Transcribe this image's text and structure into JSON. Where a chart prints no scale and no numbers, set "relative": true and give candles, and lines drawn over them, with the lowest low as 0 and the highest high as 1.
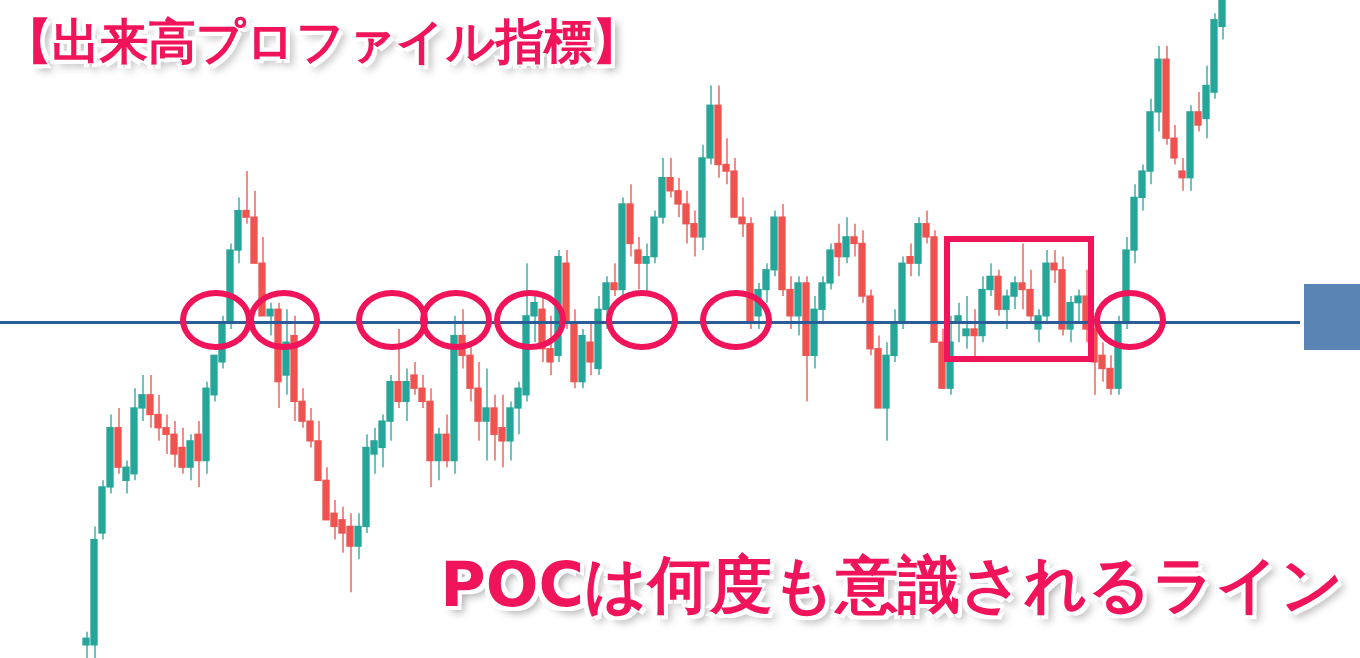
{
  "chart_data": {
    "type": "candlestick",
    "title": "【出来高プロファイル指標】",
    "relative": true,
    "annotations": [
      "POCは何度も意識されるライン"
    ],
    "ref_lines": [
      {
        "axis": "y",
        "value": 0.51,
        "color": "#2a5d98"
      }
    ],
    "categories": [
      null,
      null,
      null,
      null,
      null,
      null,
      null,
      null,
      null,
      null,
      null,
      null,
      null,
      null,
      null,
      null,
      null,
      null,
      null,
      null,
      null,
      null,
      null,
      null,
      null,
      null,
      null,
      null,
      null,
      null,
      null,
      null,
      null,
      null,
      null,
      null,
      null,
      null,
      null,
      null,
      null,
      null,
      null,
      null,
      null,
      null,
      null,
      null,
      null,
      null,
      null,
      null,
      null,
      null,
      null,
      null,
      null,
      null,
      null,
      null,
      null,
      null,
      null,
      null,
      null,
      null,
      null,
      null,
      null,
      null,
      null,
      null,
      null,
      null,
      null,
      null,
      null,
      null,
      null,
      null,
      null,
      null,
      null,
      null,
      null,
      null,
      null,
      null,
      null,
      null,
      null,
      null,
      null,
      null,
      null,
      null,
      null,
      null,
      null,
      null,
      null,
      null,
      null,
      null,
      null,
      null,
      null,
      null,
      null,
      null,
      null,
      null,
      null,
      null,
      null,
      null,
      null,
      null,
      null,
      null,
      null,
      null,
      null,
      null,
      null,
      null,
      null,
      null,
      null,
      null,
      null,
      null,
      null,
      null,
      null,
      null,
      null,
      null,
      null,
      null,
      null,
      null,
      null
    ],
    "ohlc": [
      [
        0.02,
        0.04,
        0,
        0.03
      ],
      [
        0.02,
        0.2,
        0,
        0.18
      ],
      [
        0.19,
        0.27,
        0.18,
        0.26
      ],
      [
        0.26,
        0.37,
        0.25,
        0.35
      ],
      [
        0.35,
        0.38,
        0.28,
        0.29
      ],
      [
        0.27,
        0.3,
        0.25,
        0.29
      ],
      [
        0.28,
        0.41,
        0.27,
        0.38
      ],
      [
        0.38,
        0.43,
        0.36,
        0.4
      ],
      [
        0.4,
        0.43,
        0.35,
        0.37
      ],
      [
        0.37,
        0.4,
        0.33,
        0.35
      ],
      [
        0.35,
        0.37,
        0.31,
        0.34
      ],
      [
        0.34,
        0.36,
        0.29,
        0.31
      ],
      [
        0.32,
        0.35,
        0.28,
        0.29
      ],
      [
        0.29,
        0.34,
        0.27,
        0.33
      ],
      [
        0.34,
        0.36,
        0.26,
        0.3
      ],
      [
        0.3,
        0.42,
        0.28,
        0.41
      ],
      [
        0.4,
        0.46,
        0.39,
        0.46
      ],
      [
        0.45,
        0.52,
        0.44,
        0.51
      ],
      [
        0.51,
        0.63,
        0.5,
        0.62
      ],
      [
        0.62,
        0.7,
        0.6,
        0.68
      ],
      [
        0.68,
        0.74,
        0.66,
        0.67
      ],
      [
        0.67,
        0.71,
        0.6,
        0.6
      ],
      [
        0.6,
        0.64,
        0.52,
        0.52
      ],
      [
        0.52,
        0.54,
        0.49,
        0.53
      ],
      [
        0.53,
        0.54,
        0.38,
        0.42
      ],
      [
        0.43,
        0.53,
        0.4,
        0.48
      ],
      [
        0.49,
        0.52,
        0.36,
        0.39
      ],
      [
        0.39,
        0.41,
        0.35,
        0.36
      ],
      [
        0.36,
        0.38,
        0.32,
        0.33
      ],
      [
        0.33,
        0.36,
        0.27,
        0.27
      ],
      [
        0.27,
        0.29,
        0.21,
        0.21
      ],
      [
        0.22,
        0.24,
        0.18,
        0.2
      ],
      [
        0.21,
        0.23,
        0.16,
        0.19
      ],
      [
        0.2,
        0.22,
        0.1,
        0.17
      ],
      [
        0.17,
        0.22,
        0.15,
        0.2
      ],
      [
        0.2,
        0.34,
        0.19,
        0.32
      ],
      [
        0.31,
        0.35,
        0.28,
        0.33
      ],
      [
        0.32,
        0.37,
        0.29,
        0.36
      ],
      [
        0.36,
        0.43,
        0.33,
        0.42
      ],
      [
        0.42,
        0.5,
        0.38,
        0.39
      ],
      [
        0.39,
        0.44,
        0.36,
        0.42
      ],
      [
        0.43,
        0.45,
        0.4,
        0.41
      ],
      [
        0.41,
        0.43,
        0.38,
        0.39
      ],
      [
        0.39,
        0.41,
        0.26,
        0.3
      ],
      [
        0.3,
        0.35,
        0.27,
        0.34
      ],
      [
        0.34,
        0.37,
        0.29,
        0.3
      ],
      [
        0.3,
        0.52,
        0.28,
        0.49
      ],
      [
        0.49,
        0.53,
        0.44,
        0.46
      ],
      [
        0.46,
        0.48,
        0.39,
        0.41
      ],
      [
        0.41,
        0.45,
        0.33,
        0.36
      ],
      [
        0.36,
        0.44,
        0.3,
        0.38
      ],
      [
        0.38,
        0.4,
        0.3,
        0.34
      ],
      [
        0.35,
        0.4,
        0.29,
        0.33
      ],
      [
        0.33,
        0.39,
        0.3,
        0.38
      ],
      [
        0.38,
        0.42,
        0.34,
        0.41
      ],
      [
        0.4,
        0.6,
        0.39,
        0.52
      ],
      [
        0.52,
        0.55,
        0.48,
        0.54
      ],
      [
        0.53,
        0.55,
        0.45,
        0.47
      ],
      [
        0.47,
        0.52,
        0.43,
        0.45
      ],
      [
        0.46,
        0.62,
        0.45,
        0.61
      ],
      [
        0.6,
        0.62,
        0.5,
        0.51
      ],
      [
        0.51,
        0.53,
        0.41,
        0.42
      ],
      [
        0.42,
        0.5,
        0.41,
        0.49
      ],
      [
        0.48,
        0.51,
        0.43,
        0.45
      ],
      [
        0.44,
        0.55,
        0.43,
        0.53
      ],
      [
        0.53,
        0.58,
        0.5,
        0.57
      ],
      [
        0.57,
        0.6,
        0.55,
        0.56
      ],
      [
        0.56,
        0.7,
        0.55,
        0.69
      ],
      [
        0.69,
        0.72,
        0.61,
        0.63
      ],
      [
        0.62,
        0.64,
        0.56,
        0.6
      ],
      [
        0.6,
        0.63,
        0.55,
        0.61
      ],
      [
        0.61,
        0.68,
        0.6,
        0.67
      ],
      [
        0.67,
        0.76,
        0.66,
        0.73
      ],
      [
        0.73,
        0.76,
        0.7,
        0.71
      ],
      [
        0.71,
        0.73,
        0.67,
        0.69
      ],
      [
        0.69,
        0.71,
        0.63,
        0.66
      ],
      [
        0.66,
        0.68,
        0.61,
        0.64
      ],
      [
        0.64,
        0.78,
        0.62,
        0.76
      ],
      [
        0.76,
        0.87,
        0.75,
        0.84
      ],
      [
        0.84,
        0.87,
        0.73,
        0.75
      ],
      [
        0.75,
        0.79,
        0.72,
        0.74
      ],
      [
        0.74,
        0.76,
        0.67,
        0.67
      ],
      [
        0.67,
        0.7,
        0.64,
        0.66
      ],
      [
        0.66,
        0.67,
        0.5,
        0.51
      ],
      [
        0.52,
        0.57,
        0.5,
        0.56
      ],
      [
        0.56,
        0.6,
        0.54,
        0.59
      ],
      [
        0.59,
        0.68,
        0.58,
        0.67
      ],
      [
        0.67,
        0.69,
        0.55,
        0.56
      ],
      [
        0.56,
        0.58,
        0.5,
        0.52
      ],
      [
        0.52,
        0.58,
        0.49,
        0.57
      ],
      [
        0.57,
        0.58,
        0.39,
        0.46
      ],
      [
        0.46,
        0.55,
        0.44,
        0.53
      ],
      [
        0.53,
        0.58,
        0.51,
        0.57
      ],
      [
        0.57,
        0.63,
        0.56,
        0.62
      ],
      [
        0.63,
        0.66,
        0.58,
        0.61
      ],
      [
        0.61,
        0.67,
        0.6,
        0.64
      ],
      [
        0.64,
        0.66,
        0.61,
        0.63
      ],
      [
        0.63,
        0.65,
        0.54,
        0.55
      ],
      [
        0.55,
        0.56,
        0.46,
        0.47
      ],
      [
        0.47,
        0.49,
        0.38,
        0.38
      ],
      [
        0.38,
        0.48,
        0.33,
        0.46
      ],
      [
        0.46,
        0.53,
        0.45,
        0.51
      ],
      [
        0.51,
        0.61,
        0.5,
        0.6
      ],
      [
        0.61,
        0.63,
        0.58,
        0.6
      ],
      [
        0.6,
        0.67,
        0.58,
        0.66
      ],
      [
        0.66,
        0.68,
        0.63,
        0.64
      ],
      [
        0.64,
        0.65,
        0.48,
        0.48
      ],
      [
        0.48,
        0.5,
        0.41,
        0.41
      ],
      [
        0.41,
        0.52,
        0.4,
        0.48
      ],
      [
        0.51,
        0.54,
        0.48,
        0.52
      ],
      [
        0.49,
        0.55,
        0.47,
        0.5
      ],
      [
        0.5,
        0.53,
        0.45,
        0.49
      ],
      [
        0.49,
        0.58,
        0.48,
        0.56
      ],
      [
        0.56,
        0.6,
        0.55,
        0.58
      ],
      [
        0.58,
        0.59,
        0.52,
        0.53
      ],
      [
        0.53,
        0.56,
        0.5,
        0.55
      ],
      [
        0.55,
        0.58,
        0.53,
        0.57
      ],
      [
        0.57,
        0.63,
        0.53,
        0.56
      ],
      [
        0.56,
        0.59,
        0.51,
        0.52
      ],
      [
        0.5,
        0.53,
        0.48,
        0.52
      ],
      [
        0.52,
        0.62,
        0.51,
        0.6
      ],
      [
        0.6,
        0.62,
        0.57,
        0.59
      ],
      [
        0.59,
        0.61,
        0.49,
        0.5
      ],
      [
        0.5,
        0.55,
        0.48,
        0.54
      ],
      [
        0.54,
        0.56,
        0.51,
        0.55
      ],
      [
        0.55,
        0.59,
        0.48,
        0.5
      ],
      [
        0.5,
        0.52,
        0.4,
        0.45
      ],
      [
        0.46,
        0.48,
        0.42,
        0.44
      ],
      [
        0.44,
        0.46,
        0.4,
        0.41
      ],
      [
        0.41,
        0.52,
        0.4,
        0.51
      ],
      [
        0.51,
        0.64,
        0.5,
        0.62
      ],
      [
        0.62,
        0.72,
        0.6,
        0.7
      ],
      [
        0.7,
        0.75,
        0.68,
        0.74
      ],
      [
        0.74,
        0.85,
        0.72,
        0.83
      ],
      [
        0.83,
        0.93,
        0.8,
        0.91
      ],
      [
        0.91,
        0.93,
        0.78,
        0.79
      ],
      [
        0.79,
        0.81,
        0.75,
        0.76
      ],
      [
        0.74,
        0.76,
        0.71,
        0.73
      ],
      [
        0.73,
        0.84,
        0.71,
        0.83
      ],
      [
        0.83,
        0.86,
        0.8,
        0.81
      ],
      [
        0.82,
        0.9,
        0.79,
        0.87
      ],
      [
        0.86,
        0.98,
        0.85,
        0.97
      ],
      [
        0.96,
        1,
        0.94,
        1
      ]
    ]
  }
}
